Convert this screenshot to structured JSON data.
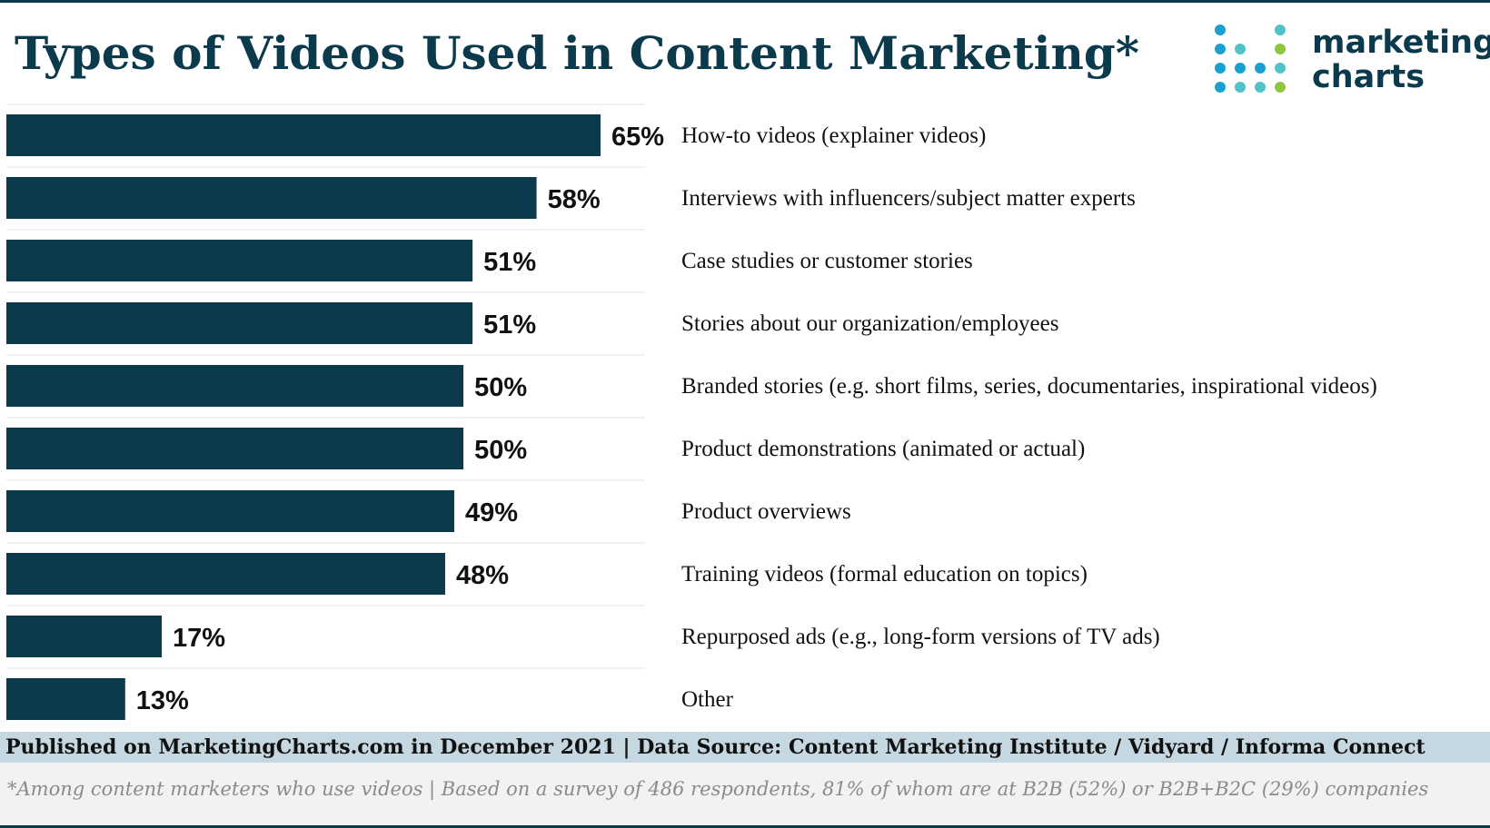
{
  "title": "Types of Videos Used in Content Marketing*",
  "logo": {
    "line1": "marketing",
    "line2": "charts",
    "dot_colors": [
      "#1a9fd1",
      "#4fc3c7",
      "#8dc63f",
      "#0b3a4c"
    ]
  },
  "colors": {
    "bar": "#0b3a4c",
    "title": "#0b3a4c",
    "footer_band": "#c5d7e1",
    "footnote_band": "#f2f2f2"
  },
  "chart_data": {
    "type": "bar",
    "orientation": "horizontal",
    "title": "Types of Videos Used in Content Marketing*",
    "xlim": [
      0,
      65
    ],
    "grid": false,
    "categories": [
      "How-to videos (explainer videos)",
      "Interviews with influencers/subject matter experts",
      "Case studies or customer stories",
      "Stories about our organization/employees",
      "Branded stories (e.g. short films, series, documentaries, inspirational videos)",
      "Product demonstrations (animated or actual)",
      "Product overviews",
      "Training videos (formal education on topics)",
      "Repurposed ads (e.g., long-form versions of TV ads)",
      "Other"
    ],
    "values": [
      65,
      58,
      51,
      51,
      50,
      50,
      49,
      48,
      17,
      13
    ],
    "value_labels": [
      "65%",
      "58%",
      "51%",
      "51%",
      "50%",
      "50%",
      "49%",
      "48%",
      "17%",
      "13%"
    ]
  },
  "footer": {
    "source": "Published on MarketingCharts.com in December 2021 | Data Source: Content Marketing Institute / Vidyard / Informa Connect",
    "note": "*Among content marketers who use videos | Based on a survey of 486 respondents, 81% of whom are at B2B (52%) or B2B+B2C (29%) companies"
  }
}
